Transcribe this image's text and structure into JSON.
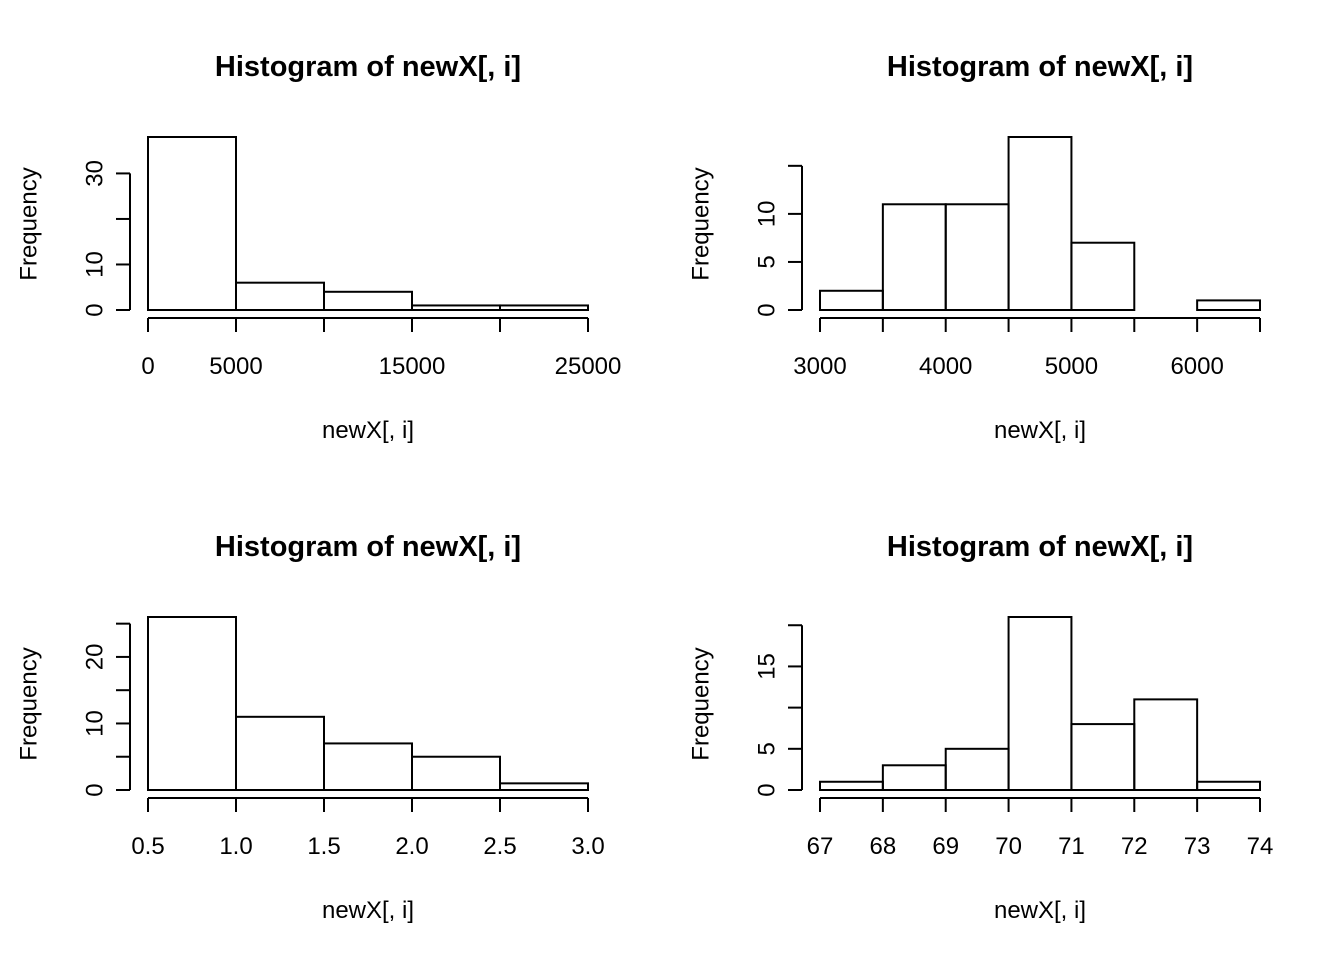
{
  "chart_data": [
    {
      "type": "bar",
      "title": "Histogram of newX[, i]",
      "xlabel": "newX[, i]",
      "ylabel": "Frequency",
      "bins": [
        [
          0,
          5000
        ],
        [
          5000,
          10000
        ],
        [
          10000,
          15000
        ],
        [
          15000,
          20000
        ],
        [
          20000,
          25000
        ]
      ],
      "values": [
        38,
        6,
        4,
        1,
        1
      ],
      "xlim": [
        0,
        25000
      ],
      "ylim": [
        0,
        38
      ],
      "xticks": [
        0,
        5000,
        10000,
        15000,
        20000,
        25000
      ],
      "xticklabels": [
        "0",
        "5000",
        "",
        "15000",
        "",
        "25000"
      ],
      "yticks": [
        0,
        10,
        20,
        30
      ],
      "yticklabels": [
        "0",
        "10",
        "",
        "30"
      ]
    },
    {
      "type": "bar",
      "title": "Histogram of newX[, i]",
      "xlabel": "newX[, i]",
      "ylabel": "Frequency",
      "bins": [
        [
          3000,
          3500
        ],
        [
          3500,
          4000
        ],
        [
          4000,
          4500
        ],
        [
          4500,
          5000
        ],
        [
          5000,
          5500
        ],
        [
          5500,
          6000
        ],
        [
          6000,
          6500
        ]
      ],
      "values": [
        2,
        11,
        11,
        18,
        7,
        0,
        1
      ],
      "xlim": [
        3000,
        6500
      ],
      "ylim": [
        0,
        18
      ],
      "xticks": [
        3000,
        3500,
        4000,
        4500,
        5000,
        5500,
        6000,
        6500
      ],
      "xticklabels": [
        "3000",
        "",
        "4000",
        "",
        "5000",
        "",
        "6000",
        ""
      ],
      "yticks": [
        0,
        5,
        10,
        15
      ],
      "yticklabels": [
        "0",
        "5",
        "10",
        ""
      ]
    },
    {
      "type": "bar",
      "title": "Histogram of newX[, i]",
      "xlabel": "newX[, i]",
      "ylabel": "Frequency",
      "bins": [
        [
          0.5,
          1.0
        ],
        [
          1.0,
          1.5
        ],
        [
          1.5,
          2.0
        ],
        [
          2.0,
          2.5
        ],
        [
          2.5,
          3.0
        ]
      ],
      "values": [
        26,
        11,
        7,
        5,
        1
      ],
      "xlim": [
        0.5,
        3.0
      ],
      "ylim": [
        0,
        26
      ],
      "xticks": [
        0.5,
        1.0,
        1.5,
        2.0,
        2.5,
        3.0
      ],
      "xticklabels": [
        "0.5",
        "1.0",
        "1.5",
        "2.0",
        "2.5",
        "3.0"
      ],
      "yticks": [
        0,
        5,
        10,
        15,
        20,
        25
      ],
      "yticklabels": [
        "0",
        "",
        "10",
        "",
        "20",
        ""
      ]
    },
    {
      "type": "bar",
      "title": "Histogram of newX[, i]",
      "xlabel": "newX[, i]",
      "ylabel": "Frequency",
      "bins": [
        [
          67,
          68
        ],
        [
          68,
          69
        ],
        [
          69,
          70
        ],
        [
          70,
          71
        ],
        [
          71,
          72
        ],
        [
          72,
          73
        ],
        [
          73,
          74
        ]
      ],
      "values": [
        1,
        3,
        5,
        21,
        8,
        11,
        1
      ],
      "xlim": [
        67,
        74
      ],
      "ylim": [
        0,
        21
      ],
      "xticks": [
        67,
        68,
        69,
        70,
        71,
        72,
        73,
        74
      ],
      "xticklabels": [
        "67",
        "68",
        "69",
        "70",
        "71",
        "72",
        "73",
        "74"
      ],
      "yticks": [
        0,
        5,
        10,
        15,
        20
      ],
      "yticklabels": [
        "0",
        "5",
        "",
        "15",
        ""
      ]
    }
  ]
}
